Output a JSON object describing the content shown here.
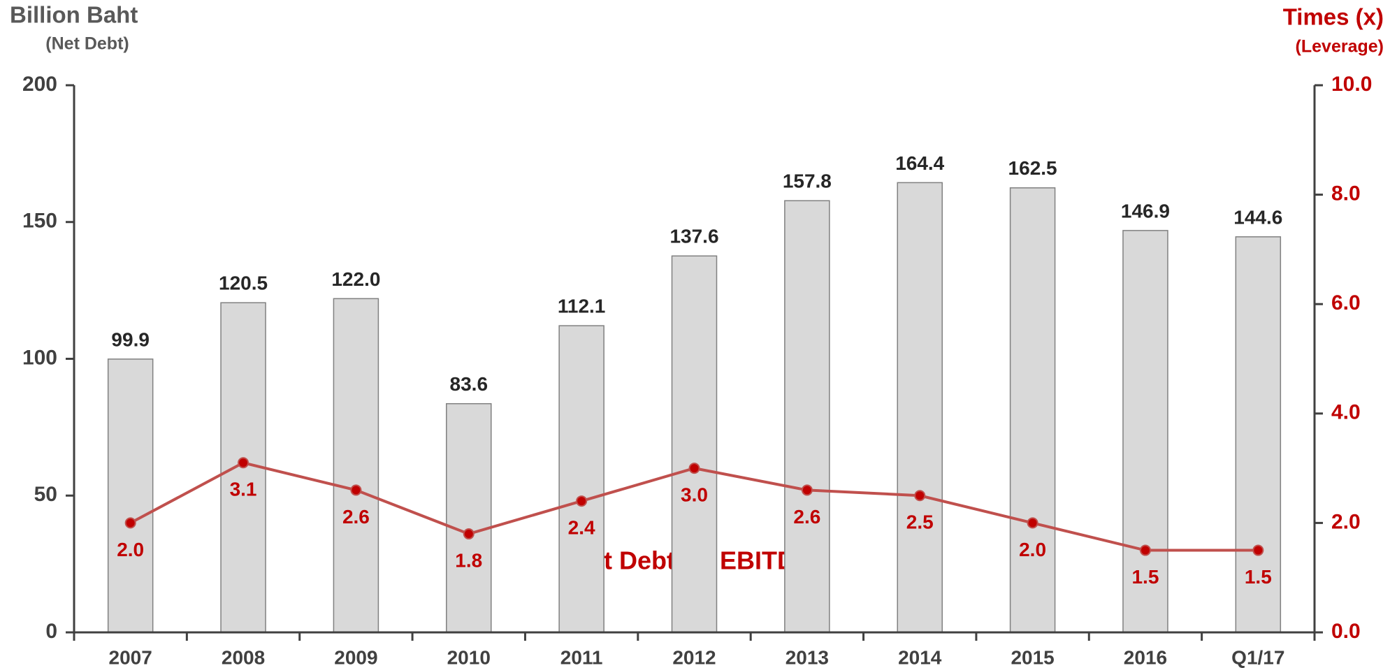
{
  "chart_data": {
    "type": "bar_line",
    "y_title": "Billion Baht",
    "y_subtitle": "(Net Debt)",
    "y2_title": "Times (x)",
    "y2_subtitle": "(Leverage)",
    "annotation": "Net Debt on EBITDA",
    "categories": [
      "2007",
      "2008",
      "2009",
      "2010",
      "2011",
      "2012",
      "2013",
      "2014",
      "2015",
      "2016",
      "Q1/17"
    ],
    "series": [
      {
        "name": "Net Debt",
        "type": "bar",
        "color": "#d9d9d9",
        "values": [
          99.9,
          120.5,
          122.0,
          83.6,
          112.1,
          137.6,
          157.8,
          164.4,
          162.5,
          146.9,
          144.6
        ],
        "value_labels": [
          "99.9",
          "120.5",
          "122.0",
          "83.6",
          "112.1",
          "137.6",
          "157.8",
          "164.4",
          "162.5",
          "146.9",
          "144.6"
        ]
      },
      {
        "name": "Net Debt on EBITDA",
        "type": "line",
        "axis": "y2",
        "color": "#c0504d",
        "values": [
          2.0,
          3.1,
          2.6,
          1.8,
          2.4,
          3.0,
          2.6,
          2.5,
          2.0,
          1.5,
          1.5
        ],
        "value_labels": [
          "2.0",
          "3.1",
          "2.6",
          "1.8",
          "2.4",
          "3.0",
          "2.6",
          "2.5",
          "2.0",
          "1.5",
          "1.5"
        ]
      }
    ],
    "ylim": [
      0,
      200
    ],
    "yticks": [
      0,
      50,
      100,
      150,
      200
    ],
    "y2lim": [
      0,
      10
    ],
    "y2ticks": [
      {
        "value": 0,
        "label": "0.0"
      },
      {
        "value": 2,
        "label": "2.0"
      },
      {
        "value": 4,
        "label": "4.0"
      },
      {
        "value": 6,
        "label": "6.0"
      },
      {
        "value": 8,
        "label": "8.0"
      },
      {
        "value": 10,
        "label": "10.0"
      }
    ],
    "grid": false
  }
}
